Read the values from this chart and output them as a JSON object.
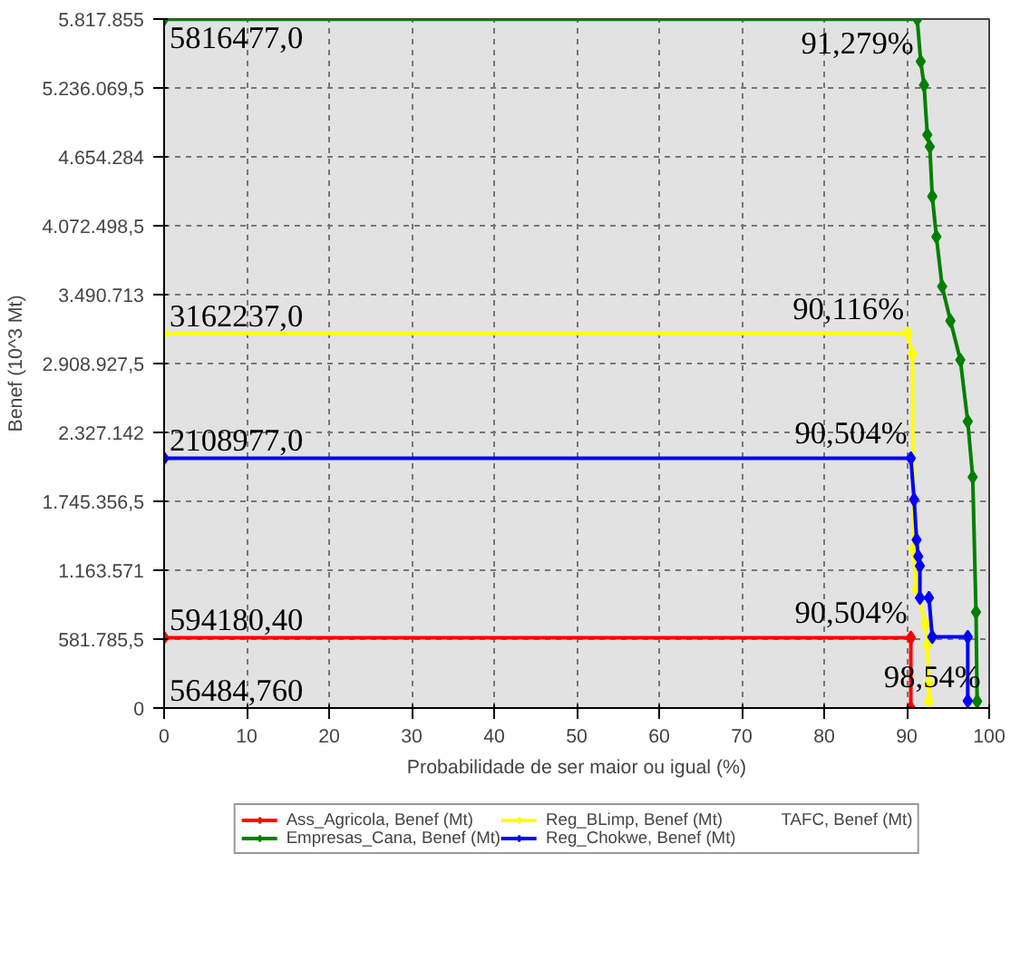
{
  "chart_data": {
    "type": "line",
    "xlabel": "Probabilidade de ser maior ou igual (%)",
    "ylabel": "Benef (10^3 Mt)",
    "xlim": [
      0,
      100
    ],
    "ylim": [
      0,
      5817855
    ],
    "xticks": [
      0,
      10,
      20,
      30,
      40,
      50,
      60,
      70,
      80,
      90,
      100
    ],
    "yticks": [
      {
        "value": 0,
        "label": "0"
      },
      {
        "value": 581785.5,
        "label": "581.785,5"
      },
      {
        "value": 1163571,
        "label": "1.163.571"
      },
      {
        "value": 1745356.5,
        "label": "1.745.356,5"
      },
      {
        "value": 2327142,
        "label": "2.327.142"
      },
      {
        "value": 2908927.5,
        "label": "2.908.927,5"
      },
      {
        "value": 3490713,
        "label": "3.490.713"
      },
      {
        "value": 4072498.5,
        "label": "4.072.498,5"
      },
      {
        "value": 4654284,
        "label": "4.654.284"
      },
      {
        "value": 5236069.5,
        "label": "5.236.069,5"
      },
      {
        "value": 5817855,
        "label": "5.817.855"
      }
    ],
    "grid": true,
    "legend": "bottom",
    "marker": "diamond",
    "line_style": "solid",
    "series": [
      {
        "name": "Ass_Agricola, Benef (Mt)",
        "color": "#ff0000",
        "x": [
          0,
          90.504,
          90.5
        ],
        "values": [
          594180.4,
          594180.4,
          0
        ]
      },
      {
        "name": "Empresas_Cana, Benef (Mt)",
        "color": "#008000",
        "x": [
          0,
          91.279,
          91.7,
          92.1,
          92.5,
          92.8,
          93.1,
          93.6,
          94.3,
          95.3,
          96.5,
          97.4,
          98.0,
          98.4,
          98.54
        ],
        "values": [
          5816477,
          5816477,
          5460000,
          5260000,
          4840000,
          4740000,
          4320000,
          3980000,
          3560000,
          3270000,
          2940000,
          2420000,
          1950000,
          810000,
          56484.76
        ]
      },
      {
        "name": "Reg_BLimp, Benef (Mt)",
        "color": "#ffff00",
        "x": [
          0,
          90.116,
          90.7,
          90.8,
          91.2,
          92.3,
          92.5,
          92.7,
          92.7
        ],
        "values": [
          3162237,
          3162237,
          2990000,
          1340000,
          1000000,
          710000,
          530000,
          200000,
          60000
        ]
      },
      {
        "name": "Reg_Chokwe, Benef (Mt)",
        "color": "#0000ff",
        "x": [
          0,
          90.504,
          90.9,
          91.2,
          91.4,
          91.6,
          91.6,
          92.7,
          93.1,
          97.4,
          97.4
        ],
        "values": [
          2108977,
          2108977,
          1760000,
          1420000,
          1280000,
          1200000,
          930000,
          930000,
          600000,
          600000,
          60000
        ]
      },
      {
        "name": "TAFC, Benef (Mt)"
      }
    ],
    "annotations": [
      {
        "text": "5816477,0",
        "x": 0,
        "y": 5816477
      },
      {
        "text": "91,279%",
        "x": 91.279,
        "y": 5816477
      },
      {
        "text": "3162237,0",
        "x": 0,
        "y": 3162237
      },
      {
        "text": "90,116%",
        "x": 90.116,
        "y": 3162237
      },
      {
        "text": "2108977,0",
        "x": 0,
        "y": 2108977
      },
      {
        "text": "90,504%",
        "x": 90.504,
        "y": 2108977
      },
      {
        "text": "594180,40",
        "x": 0,
        "y": 594180.4
      },
      {
        "text": "90,504%",
        "x": 90.504,
        "y": 594180.4
      },
      "56484,760",
      {
        "text": "98,54%",
        "x": 98.54,
        "y": 56484.76
      }
    ]
  }
}
